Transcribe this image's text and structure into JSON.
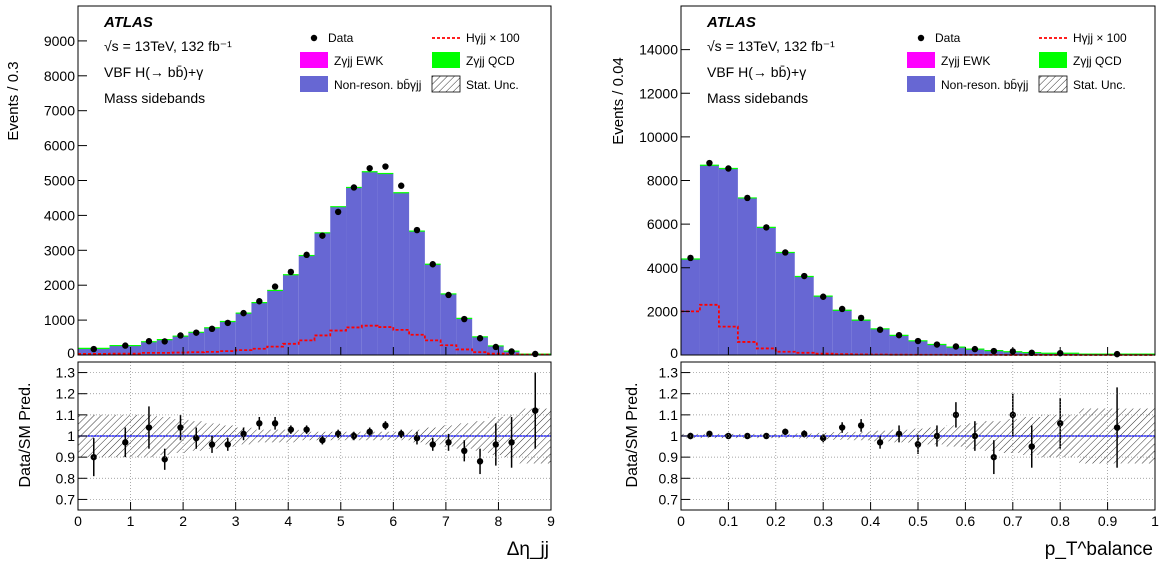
{
  "chart_data": [
    {
      "type": "histogram",
      "experiment": "ATLAS",
      "labels": [
        "√s = 13TeV, 132 fb⁻¹",
        "VBF H(→ bb̄)+γ",
        "Mass sidebands"
      ],
      "ylabel": "Events / 0.3",
      "ratio_ylabel": "Data/SM Pred.",
      "xlabel": "Δη_jj",
      "xlim": [
        0,
        9
      ],
      "ylim": [
        0,
        10000
      ],
      "ratio_ylim": [
        0.65,
        1.35
      ],
      "x_ticks": [
        "0",
        "1",
        "2",
        "3",
        "4",
        "5",
        "6",
        "7",
        "8",
        "9"
      ],
      "y_ticks": [
        "1000",
        "2000",
        "3000",
        "4000",
        "5000",
        "6000",
        "7000",
        "8000",
        "9000"
      ],
      "ratio_y_ticks": [
        "0.7",
        "0.8",
        "0.9",
        "1",
        "1.1",
        "1.2",
        "1.3"
      ],
      "legend": [
        "Data",
        "Hγjj × 100",
        "Zγjj EWK",
        "Zγjj QCD",
        "Non-reson. bb̄γjj",
        "Stat. Unc."
      ],
      "bin_edges": [
        0,
        0.6,
        1.2,
        1.5,
        1.8,
        2.1,
        2.4,
        2.7,
        3.0,
        3.3,
        3.6,
        3.9,
        4.2,
        4.5,
        4.8,
        5.1,
        5.4,
        5.7,
        6.0,
        6.3,
        6.6,
        6.9,
        7.2,
        7.5,
        7.8,
        8.1,
        8.4,
        9.0
      ],
      "background": [
        190,
        270,
        380,
        440,
        540,
        650,
        780,
        960,
        1200,
        1500,
        1850,
        2300,
        2850,
        3500,
        4250,
        4800,
        5250,
        5200,
        4650,
        3550,
        2600,
        1750,
        1050,
        520,
        260,
        110,
        25
      ],
      "signal_x100": [
        30,
        40,
        60,
        60,
        70,
        80,
        90,
        110,
        140,
        180,
        240,
        320,
        420,
        560,
        700,
        790,
        840,
        800,
        720,
        580,
        420,
        280,
        160,
        80,
        40,
        20,
        10
      ],
      "data_x": [
        0.3,
        0.9,
        1.35,
        1.65,
        1.95,
        2.25,
        2.55,
        2.85,
        3.15,
        3.45,
        3.75,
        4.05,
        4.35,
        4.65,
        4.95,
        5.25,
        5.55,
        5.85,
        6.15,
        6.45,
        6.75,
        7.05,
        7.35,
        7.65,
        7.95,
        8.25,
        8.7
      ],
      "data_y": [
        170,
        270,
        395,
        390,
        560,
        640,
        750,
        920,
        1200,
        1540,
        1960,
        2380,
        2870,
        3420,
        4100,
        4800,
        5350,
        5400,
        4850,
        3580,
        2600,
        1720,
        1030,
        480,
        230,
        100,
        30
      ],
      "ratio": [
        0.9,
        0.97,
        1.04,
        0.89,
        1.04,
        0.99,
        0.96,
        0.96,
        1.01,
        1.06,
        1.06,
        1.03,
        1.03,
        0.98,
        1.01,
        1.0,
        1.02,
        1.05,
        1.01,
        0.99,
        0.96,
        0.97,
        0.93,
        0.88,
        0.96,
        0.97,
        1.12
      ],
      "ratio_err": [
        0.09,
        0.07,
        0.1,
        0.05,
        0.06,
        0.05,
        0.04,
        0.03,
        0.03,
        0.03,
        0.03,
        0.02,
        0.02,
        0.02,
        0.02,
        0.02,
        0.02,
        0.02,
        0.02,
        0.03,
        0.03,
        0.04,
        0.05,
        0.06,
        0.1,
        0.12,
        0.18
      ],
      "stat_unc": [
        0.1,
        0.1,
        0.1,
        0.09,
        0.08,
        0.07,
        0.06,
        0.05,
        0.04,
        0.03,
        0.03,
        0.03,
        0.02,
        0.02,
        0.02,
        0.02,
        0.02,
        0.02,
        0.02,
        0.03,
        0.04,
        0.05,
        0.06,
        0.07,
        0.09,
        0.1,
        0.13
      ],
      "colors": {
        "background": "#6767d3",
        "ewk": "#ff00ff",
        "qcd": "#00ff00",
        "signal": "#ff0000",
        "ratio_line": "#0000ff"
      }
    },
    {
      "type": "histogram",
      "experiment": "ATLAS",
      "labels": [
        "√s = 13TeV, 132 fb⁻¹",
        "VBF H(→ bb̄)+γ",
        "Mass sidebands"
      ],
      "ylabel": "Events / 0.04",
      "ratio_ylabel": "Data/SM Pred.",
      "xlabel": "p_T^balance",
      "xlim": [
        0,
        1
      ],
      "ylim": [
        0,
        16000
      ],
      "ratio_ylim": [
        0.65,
        1.35
      ],
      "x_ticks": [
        "0",
        "0.1",
        "0.2",
        "0.3",
        "0.4",
        "0.5",
        "0.6",
        "0.7",
        "0.8",
        "0.9",
        "1"
      ],
      "y_ticks": [
        "2000",
        "4000",
        "6000",
        "8000",
        "10000",
        "12000",
        "14000"
      ],
      "ratio_y_ticks": [
        "0.7",
        "0.8",
        "0.9",
        "1",
        "1.1",
        "1.2",
        "1.3"
      ],
      "legend": [
        "Data",
        "Hγjj × 100",
        "Zγjj EWK",
        "Zγjj QCD",
        "Non-reson. bb̄γjj",
        "Stat. Unc."
      ],
      "bin_edges": [
        0,
        0.04,
        0.08,
        0.12,
        0.16,
        0.2,
        0.24,
        0.28,
        0.32,
        0.36,
        0.4,
        0.44,
        0.48,
        0.52,
        0.56,
        0.6,
        0.64,
        0.68,
        0.72,
        0.76,
        0.84,
        1.0
      ],
      "background": [
        4400,
        8700,
        8550,
        7200,
        5850,
        4700,
        3600,
        2700,
        2050,
        1600,
        1200,
        900,
        650,
        480,
        360,
        270,
        200,
        150,
        110,
        80,
        40
      ],
      "signal_x100": [
        2000,
        2300,
        1300,
        600,
        300,
        150,
        100,
        60,
        40,
        30,
        20,
        15,
        10,
        10,
        5,
        5,
        5,
        3,
        3,
        2,
        1
      ],
      "data_x": [
        0.02,
        0.06,
        0.1,
        0.14,
        0.18,
        0.22,
        0.26,
        0.3,
        0.34,
        0.38,
        0.42,
        0.46,
        0.5,
        0.54,
        0.58,
        0.62,
        0.66,
        0.7,
        0.74,
        0.8,
        0.92
      ],
      "data_y": [
        4450,
        8800,
        8550,
        7200,
        5850,
        4700,
        3620,
        2670,
        2110,
        1700,
        1160,
        910,
        640,
        480,
        390,
        270,
        180,
        165,
        100,
        85,
        40
      ],
      "ratio": [
        1.0,
        1.01,
        1.0,
        1.0,
        1.0,
        1.02,
        1.01,
        0.99,
        1.04,
        1.05,
        0.97,
        1.01,
        0.96,
        1.0,
        1.1,
        1.0,
        0.9,
        1.1,
        0.95,
        1.06,
        1.04
      ],
      "ratio_err": [
        0.015,
        0.01,
        0.01,
        0.012,
        0.013,
        0.015,
        0.017,
        0.02,
        0.025,
        0.03,
        0.03,
        0.04,
        0.045,
        0.05,
        0.06,
        0.07,
        0.08,
        0.1,
        0.1,
        0.12,
        0.19
      ],
      "stat_unc": [
        0.01,
        0.01,
        0.01,
        0.01,
        0.01,
        0.01,
        0.012,
        0.015,
        0.018,
        0.02,
        0.025,
        0.03,
        0.035,
        0.04,
        0.05,
        0.06,
        0.07,
        0.08,
        0.09,
        0.1,
        0.13
      ],
      "colors": {
        "background": "#6767d3",
        "ewk": "#ff00ff",
        "qcd": "#00ff00",
        "signal": "#ff0000",
        "ratio_line": "#0000ff"
      }
    }
  ]
}
